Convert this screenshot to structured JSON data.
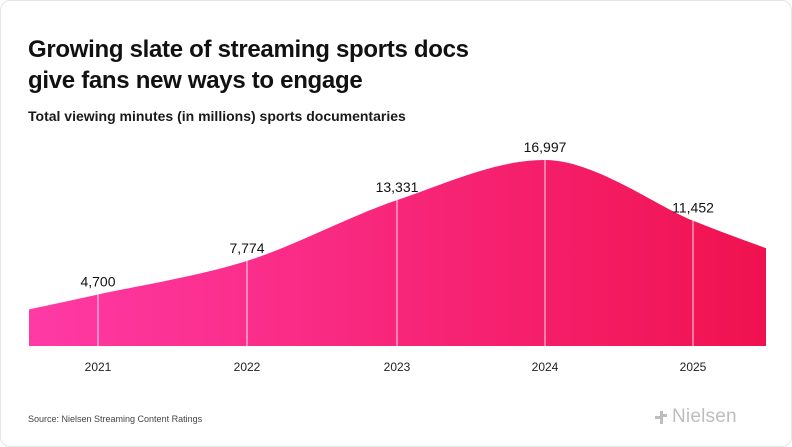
{
  "title_line1": "Growing slate of streaming sports docs",
  "title_line2": "give fans new ways to engage",
  "subtitle": "Total viewing minutes (in millions) sports documentaries",
  "source": "Source: Nielsen Streaming Content Ratings",
  "logo_text": "Nielsen",
  "colors": {
    "area_start": "#ff3aa5",
    "area_end": "#f0124f",
    "text": "#111111"
  },
  "chart_data": {
    "type": "area",
    "title": "Growing slate of streaming sports docs give fans new ways to engage",
    "ylabel": "Total viewing minutes (in millions)",
    "xlabel": "",
    "categories": [
      "2021",
      "2022",
      "2023",
      "2024",
      "2025"
    ],
    "values": [
      4700,
      7774,
      13331,
      16997,
      11452
    ],
    "labels": [
      "4,700",
      "7,774",
      "13,331",
      "16,997",
      "11,452"
    ],
    "ylim": [
      0,
      18000
    ],
    "grid": false,
    "legend": "none"
  }
}
